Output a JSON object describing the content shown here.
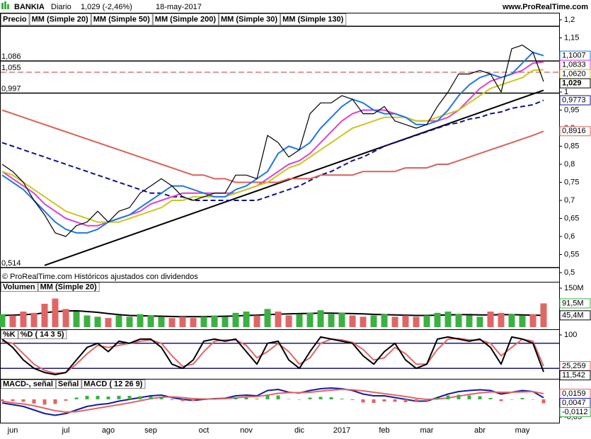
{
  "header": {
    "symbol": "BANKIA",
    "period": "Diario",
    "quote": "1,029 (-2,46%)",
    "date": "18-may-2017",
    "site": "www.ProRealTime.com"
  },
  "chart_data": [
    {
      "type": "line",
      "categories": [
        null,
        "jun",
        null,
        null,
        null,
        null,
        "jul",
        null,
        null,
        null,
        "ago",
        null,
        null,
        null,
        "sep",
        null,
        null,
        null,
        null,
        "oct",
        null,
        null,
        null,
        "nov",
        null,
        null,
        null,
        null,
        "dic",
        null,
        null,
        null,
        "2017",
        null,
        null,
        null,
        "feb",
        null,
        null,
        null,
        "mar",
        null,
        null,
        null,
        null,
        "abr",
        null,
        null,
        null,
        "may",
        null,
        null
      ],
      "ylim": [
        0.5,
        1.2
      ],
      "yticks": [
        {
          "value": 1.2,
          "label": "1,2"
        },
        {
          "value": 1.15,
          "label": "1,15"
        },
        1,
        {
          "value": 0.95,
          "label": "0,95"
        },
        {
          "value": 0.9,
          "label": "0,9"
        },
        {
          "value": 0.85,
          "label": "0,85"
        },
        {
          "value": 0.8,
          "label": "0,8"
        },
        {
          "value": 0.75,
          "label": "0,75"
        },
        {
          "value": 0.7,
          "label": "0,7"
        },
        {
          "value": 0.65,
          "label": "0,65"
        },
        {
          "value": 0.6,
          "label": "0,6"
        },
        {
          "value": 0.55,
          "label": "0,55"
        },
        {
          "value": 0.5,
          "label": "0,5"
        }
      ],
      "hlines": [
        {
          "value": 1.182,
          "color": "#000000"
        },
        {
          "value": 1.086,
          "label": "1,086",
          "color": "#000000"
        },
        {
          "value": 1.055,
          "label": "1,055",
          "color": "#c0392b",
          "style": "dashed"
        },
        {
          "value": 0.997,
          "label": "0,997",
          "color": "#000000"
        },
        {
          "value": 0.514,
          "label": "0,514",
          "color": "#000000"
        }
      ],
      "trendline": {
        "x": [
          4,
          51
        ],
        "values": [
          0.52,
          1.005
        ]
      },
      "note": "© ProRealTime.com  Históricos ajustados con dividendos",
      "series": [
        {
          "name": "Precio",
          "color": "#000000",
          "last_label": "1,029",
          "values": [
            0.8,
            0.78,
            0.75,
            0.7,
            0.66,
            0.61,
            0.6,
            0.63,
            0.64,
            0.67,
            0.64,
            0.67,
            0.68,
            0.72,
            0.74,
            0.76,
            0.74,
            0.71,
            0.7,
            0.71,
            0.72,
            0.72,
            0.77,
            0.77,
            0.76,
            0.88,
            0.86,
            0.82,
            0.84,
            0.94,
            0.97,
            0.97,
            0.99,
            0.98,
            0.94,
            0.94,
            0.96,
            0.92,
            0.91,
            0.9,
            0.91,
            0.96,
            1.0,
            1.05,
            1.05,
            1.06,
            1.05,
            1.0,
            1.12,
            1.13,
            1.11,
            1.029
          ]
        },
        {
          "name": "MM (Simple 20)",
          "color": "#1f77e0",
          "last_label": "1,1007",
          "values": [
            0.77,
            0.75,
            0.73,
            0.7,
            0.67,
            0.64,
            0.62,
            0.61,
            0.61,
            0.62,
            0.64,
            0.65,
            0.66,
            0.68,
            0.7,
            0.72,
            0.74,
            0.74,
            0.73,
            0.72,
            0.71,
            0.71,
            0.73,
            0.74,
            0.76,
            0.78,
            0.83,
            0.85,
            0.84,
            0.86,
            0.9,
            0.93,
            0.96,
            0.98,
            0.97,
            0.95,
            0.94,
            0.94,
            0.93,
            0.91,
            0.91,
            0.92,
            0.95,
            0.99,
            1.02,
            1.04,
            1.05,
            1.04,
            1.05,
            1.08,
            1.11,
            1.1007
          ]
        },
        {
          "name": "MM (Simple 50)",
          "color": "#c8c820",
          "last_label": "1,0620",
          "values": [
            0.78,
            0.77,
            0.75,
            0.73,
            0.71,
            0.69,
            0.67,
            0.66,
            0.65,
            0.64,
            0.64,
            0.64,
            0.65,
            0.66,
            0.67,
            0.68,
            0.7,
            0.7,
            0.71,
            0.71,
            0.71,
            0.71,
            0.72,
            0.73,
            0.74,
            0.75,
            0.77,
            0.79,
            0.8,
            0.82,
            0.84,
            0.86,
            0.88,
            0.9,
            0.91,
            0.92,
            0.93,
            0.93,
            0.93,
            0.92,
            0.92,
            0.93,
            0.94,
            0.95,
            0.97,
            0.99,
            1.01,
            1.02,
            1.03,
            1.04,
            1.06,
            1.062
          ]
        },
        {
          "name": "MM (Simple 200)",
          "color": "#d9625a",
          "last_label": "0,8916",
          "values": [
            0.95,
            0.94,
            0.93,
            0.92,
            0.91,
            0.9,
            0.89,
            0.88,
            0.87,
            0.86,
            0.85,
            0.84,
            0.83,
            0.82,
            0.81,
            0.8,
            0.79,
            0.78,
            0.77,
            0.77,
            0.76,
            0.76,
            0.75,
            0.75,
            0.75,
            0.75,
            0.75,
            0.76,
            0.76,
            0.76,
            0.77,
            0.77,
            0.77,
            0.77,
            0.78,
            0.78,
            0.78,
            0.78,
            0.79,
            0.79,
            0.79,
            0.8,
            0.8,
            0.81,
            0.82,
            0.83,
            0.84,
            0.85,
            0.86,
            0.87,
            0.88,
            0.8916
          ]
        },
        {
          "name": "MM (Simple 30)",
          "color": "#e040d0",
          "last_label": "1,0833",
          "values": [
            0.78,
            0.76,
            0.74,
            0.72,
            0.69,
            0.67,
            0.65,
            0.64,
            0.63,
            0.63,
            0.64,
            0.65,
            0.66,
            0.67,
            0.69,
            0.7,
            0.71,
            0.72,
            0.72,
            0.72,
            0.72,
            0.72,
            0.72,
            0.73,
            0.74,
            0.76,
            0.78,
            0.8,
            0.81,
            0.83,
            0.86,
            0.89,
            0.92,
            0.94,
            0.95,
            0.95,
            0.95,
            0.94,
            0.93,
            0.92,
            0.92,
            0.92,
            0.93,
            0.95,
            0.98,
            1.01,
            1.03,
            1.04,
            1.05,
            1.06,
            1.08,
            1.0833
          ]
        },
        {
          "name": "MM (Simple 130)",
          "color": "#101090",
          "dash": true,
          "last_label": "0,9773",
          "values": [
            0.86,
            0.85,
            0.84,
            0.83,
            0.82,
            0.81,
            0.8,
            0.79,
            0.78,
            0.77,
            0.76,
            0.75,
            0.74,
            0.73,
            0.72,
            0.72,
            0.71,
            0.71,
            0.7,
            0.7,
            0.7,
            0.7,
            0.7,
            0.7,
            0.7,
            0.71,
            0.72,
            0.73,
            0.74,
            0.755,
            0.77,
            0.78,
            0.795,
            0.81,
            0.82,
            0.835,
            0.85,
            0.86,
            0.87,
            0.88,
            0.89,
            0.9,
            0.91,
            0.915,
            0.925,
            0.93,
            0.94,
            0.945,
            0.955,
            0.96,
            0.965,
            0.9773
          ]
        }
      ]
    },
    {
      "type": "bar",
      "ylim": [
        0,
        150
      ],
      "yticks": [
        {
          "value": 150,
          "label": "150M"
        }
      ],
      "series": [
        {
          "name": "Volumen",
          "kind": "bar",
          "color": "#3cb043",
          "negative_color": "#e06666",
          "last_label": "91,5M",
          "values": [
            50,
            45,
            60,
            55,
            90,
            110,
            70,
            60,
            45,
            40,
            35,
            45,
            40,
            50,
            45,
            40,
            35,
            40,
            35,
            40,
            45,
            40,
            55,
            60,
            45,
            70,
            60,
            45,
            50,
            55,
            65,
            50,
            55,
            45,
            40,
            45,
            50,
            40,
            45,
            40,
            45,
            55,
            60,
            50,
            45,
            40,
            60,
            55,
            50,
            45,
            50,
            91.5
          ]
        },
        {
          "name": "MM (Simple 20)",
          "color": "#000000",
          "last_label": "45,4M",
          "values": [
            45,
            46,
            48,
            50,
            55,
            60,
            62,
            63,
            60,
            57,
            52,
            48,
            45,
            44,
            43,
            42,
            41,
            40,
            40,
            40,
            41,
            42,
            43,
            45,
            46,
            48,
            50,
            51,
            52,
            53,
            54,
            54,
            53,
            52,
            51,
            49,
            48,
            47,
            46,
            45,
            45,
            46,
            47,
            48,
            48,
            47,
            47,
            48,
            48,
            47,
            46,
            45.4
          ]
        }
      ]
    },
    {
      "type": "line",
      "ylim": [
        0,
        100
      ],
      "yticks": [
        100
      ],
      "hlines": [
        {
          "value": 80,
          "color": "#1a1a80"
        },
        {
          "value": 20,
          "color": "#1a1a80"
        }
      ],
      "series": [
        {
          "name": "%K",
          "color": "#000000",
          "last_label": "11,542",
          "values": [
            90,
            70,
            40,
            20,
            10,
            5,
            10,
            40,
            70,
            80,
            60,
            85,
            80,
            90,
            90,
            70,
            30,
            20,
            40,
            85,
            90,
            85,
            90,
            60,
            30,
            80,
            85,
            40,
            20,
            60,
            95,
            90,
            85,
            80,
            50,
            30,
            60,
            80,
            40,
            20,
            30,
            90,
            95,
            90,
            85,
            90,
            70,
            30,
            95,
            90,
            80,
            11.542
          ]
        },
        {
          "name": "%D ( 14 3 5)",
          "color": "#e06666",
          "last_label": "25,259",
          "values": [
            85,
            80,
            55,
            30,
            15,
            8,
            10,
            30,
            55,
            75,
            70,
            75,
            80,
            85,
            88,
            80,
            50,
            25,
            30,
            60,
            85,
            88,
            88,
            75,
            45,
            60,
            80,
            60,
            30,
            45,
            80,
            90,
            88,
            82,
            65,
            40,
            45,
            70,
            55,
            30,
            30,
            65,
            90,
            92,
            88,
            88,
            80,
            50,
            70,
            90,
            85,
            25.259
          ]
        }
      ]
    },
    {
      "type": "bar",
      "ylim": [
        -0.06,
        0.04
      ],
      "yticks": [
        {
          "value": -0.05,
          "label": "-0,05"
        }
      ],
      "series": [
        {
          "name": "MACD-, señal",
          "kind": "bar",
          "color": "#3cb043",
          "negative_color": "#e06666",
          "last_label": "-0,0112",
          "values": [
            -0.005,
            -0.005,
            -0.007,
            -0.012,
            -0.015,
            -0.013,
            -0.004,
            0.005,
            0.01,
            0.01,
            0.008,
            0.01,
            0.01,
            0.009,
            0.008,
            0.006,
            -0.002,
            -0.005,
            -0.005,
            -0.001,
            0.001,
            0.001,
            0.006,
            0.005,
            0.002,
            0.013,
            0.011,
            0.001,
            -0.001,
            0.005,
            0.007,
            0.006,
            0.002,
            -0.002,
            -0.009,
            -0.01,
            -0.006,
            -0.007,
            -0.008,
            -0.008,
            -0.005,
            0.004,
            0.011,
            0.013,
            0.011,
            0.009,
            0.004,
            -0.005,
            0,
            0.004,
            0,
            -0.0112
          ]
        },
        {
          "name": "Señal",
          "color": "#e06666",
          "last_label": "0,0159",
          "values": [
            -0.005,
            -0.01,
            -0.013,
            -0.018,
            -0.025,
            -0.032,
            -0.036,
            -0.035,
            -0.03,
            -0.025,
            -0.02,
            -0.015,
            -0.01,
            -0.004,
            0.002,
            0.006,
            0.007,
            0.005,
            0.002,
            0.001,
            0.001,
            0.002,
            0.004,
            0.007,
            0.008,
            0.012,
            0.017,
            0.019,
            0.019,
            0.02,
            0.023,
            0.026,
            0.028,
            0.027,
            0.024,
            0.02,
            0.016,
            0.012,
            0.008,
            0.003,
            0,
            0.001,
            0.004,
            0.009,
            0.014,
            0.018,
            0.021,
            0.02,
            0.02,
            0.021,
            0.022,
            0.0159
          ]
        },
        {
          "name": "MACD ( 12 26 9)",
          "color": "#1a1aa0",
          "last_label": "0,0047",
          "values": [
            -0.01,
            -0.015,
            -0.02,
            -0.03,
            -0.04,
            -0.045,
            -0.04,
            -0.03,
            -0.02,
            -0.015,
            -0.012,
            -0.005,
            0,
            0.005,
            0.01,
            0.012,
            0.005,
            0,
            -0.003,
            0,
            0.002,
            0.003,
            0.01,
            0.012,
            0.01,
            0.025,
            0.028,
            0.02,
            0.018,
            0.025,
            0.03,
            0.032,
            0.03,
            0.025,
            0.015,
            0.01,
            0.01,
            0.005,
            0,
            -0.005,
            -0.005,
            0.005,
            0.015,
            0.022,
            0.025,
            0.027,
            0.025,
            0.015,
            0.02,
            0.025,
            0.022,
            0.0047
          ]
        }
      ]
    }
  ]
}
